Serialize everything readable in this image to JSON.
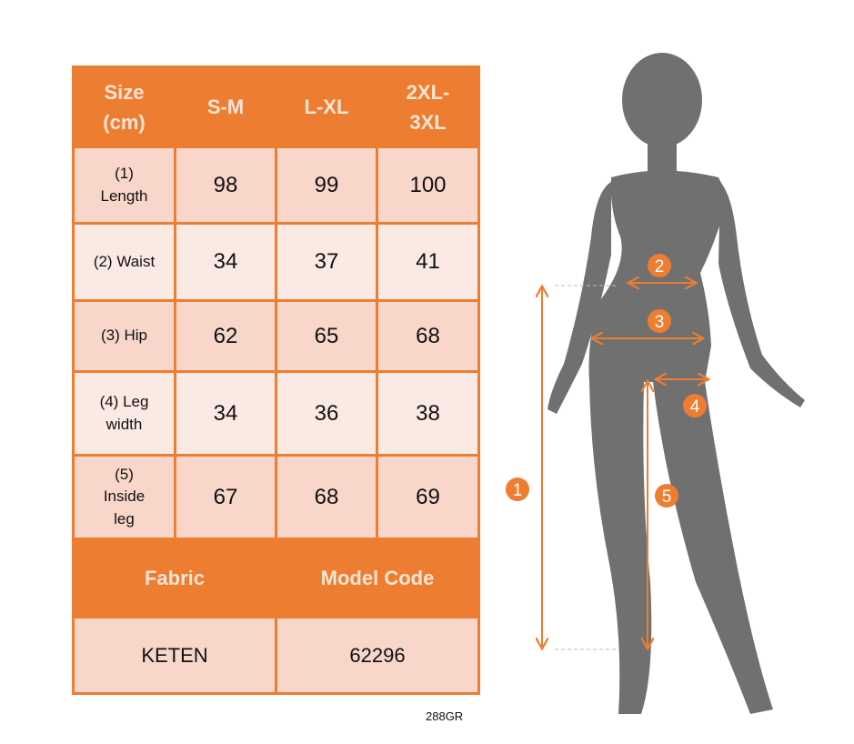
{
  "table": {
    "header": [
      "Size\n(cm)",
      "S-M",
      "L-XL",
      "2XL-\n3XL"
    ],
    "rows": [
      {
        "label": "(1)\nLength",
        "values": [
          "98",
          "99",
          "100"
        ]
      },
      {
        "label": "(2) Waist",
        "values": [
          "34",
          "37",
          "41"
        ]
      },
      {
        "label": "(3) Hip",
        "values": [
          "62",
          "65",
          "68"
        ]
      },
      {
        "label": "(4) Leg\nwidth",
        "values": [
          "34",
          "36",
          "38"
        ]
      },
      {
        "label": "(5)\nInside\nleg",
        "values": [
          "67",
          "68",
          "69"
        ]
      }
    ],
    "footer_header": [
      "Fabric",
      "Model Code"
    ],
    "footer_values": [
      "KETEN",
      "62296"
    ]
  },
  "product_code": "288GR",
  "figure": {
    "markers": [
      "1",
      "2",
      "3",
      "4",
      "5"
    ]
  },
  "colors": {
    "accent": "#ed7d31",
    "row_dark": "#f8d6ca",
    "row_light": "#fbe9e3",
    "silhouette": "#707070"
  }
}
